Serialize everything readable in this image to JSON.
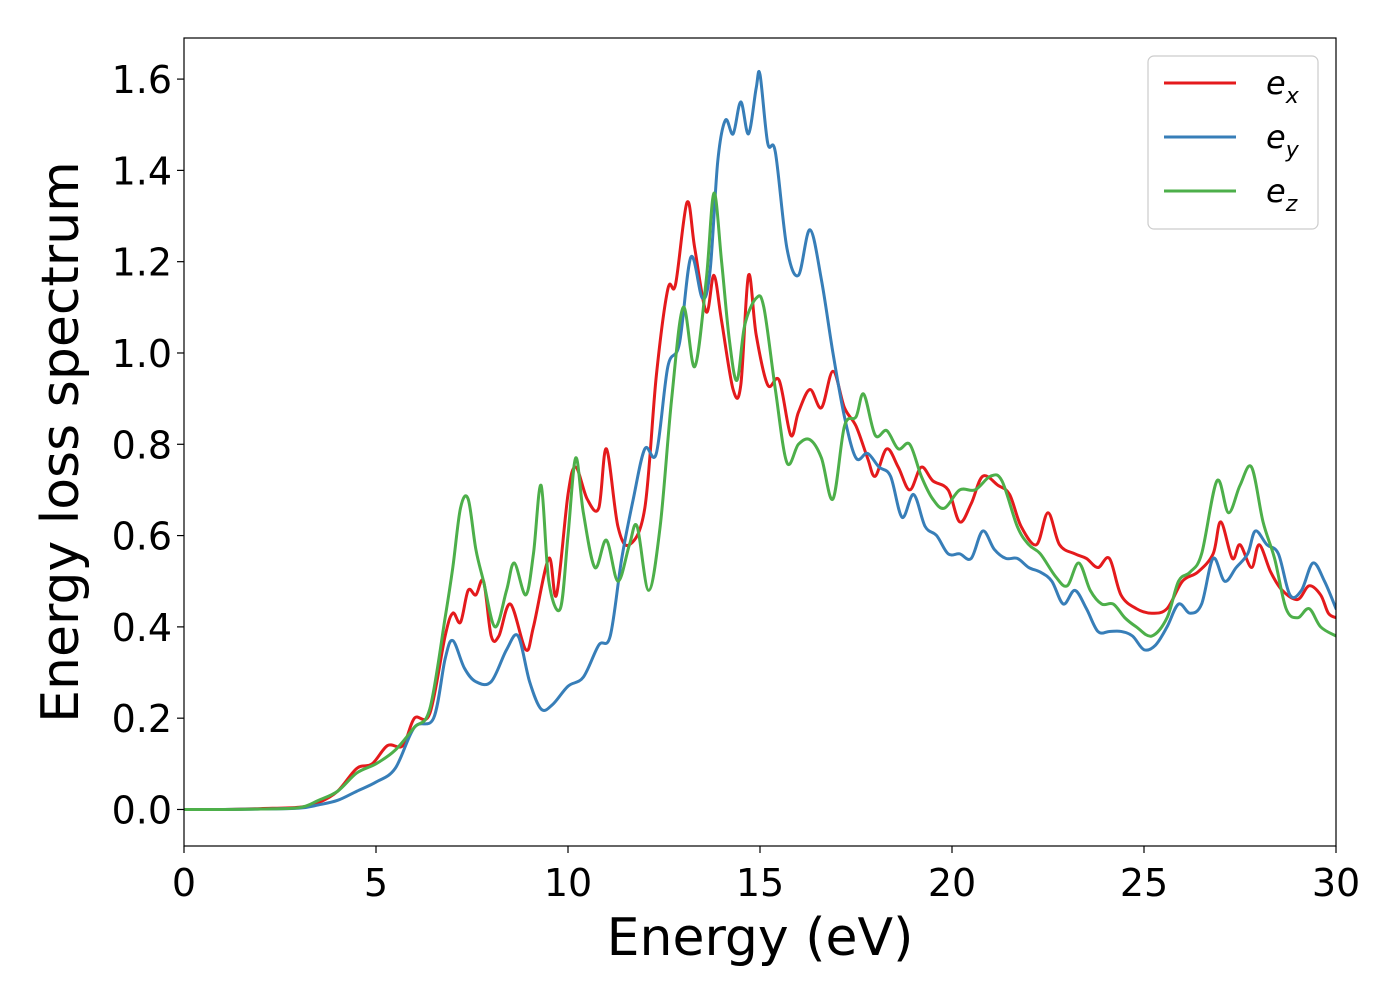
{
  "chart_data": {
    "type": "line",
    "title": "",
    "xlabel": "Energy (eV)",
    "ylabel": "Energy loss spectrum",
    "xlim": [
      0,
      30
    ],
    "ylim": [
      -0.08,
      1.69
    ],
    "xticks": [
      "0",
      "5",
      "10",
      "15",
      "20",
      "25",
      "30"
    ],
    "yticks": [
      "0.0",
      "0.2",
      "0.4",
      "0.6",
      "0.8",
      "1.0",
      "1.2",
      "1.4",
      "1.6"
    ],
    "grid": false,
    "legend_position": "top-right",
    "series": [
      {
        "name": "e_x",
        "legend_base": "e",
        "legend_sub": "x",
        "color": "#e41a1c",
        "points": [
          [
            0,
            0.0
          ],
          [
            1,
            0.0
          ],
          [
            2,
            0.002
          ],
          [
            3,
            0.005
          ],
          [
            3.5,
            0.015
          ],
          [
            4,
            0.04
          ],
          [
            4.5,
            0.09
          ],
          [
            4.9,
            0.1
          ],
          [
            5.3,
            0.14
          ],
          [
            5.7,
            0.14
          ],
          [
            6,
            0.2
          ],
          [
            6.4,
            0.21
          ],
          [
            6.8,
            0.38
          ],
          [
            7.0,
            0.43
          ],
          [
            7.2,
            0.41
          ],
          [
            7.4,
            0.48
          ],
          [
            7.6,
            0.47
          ],
          [
            7.8,
            0.5
          ],
          [
            8.0,
            0.38
          ],
          [
            8.2,
            0.38
          ],
          [
            8.5,
            0.45
          ],
          [
            8.9,
            0.35
          ],
          [
            9.1,
            0.4
          ],
          [
            9.5,
            0.55
          ],
          [
            9.7,
            0.47
          ],
          [
            10.0,
            0.69
          ],
          [
            10.2,
            0.75
          ],
          [
            10.5,
            0.68
          ],
          [
            10.8,
            0.66
          ],
          [
            11.0,
            0.79
          ],
          [
            11.3,
            0.62
          ],
          [
            11.6,
            0.58
          ],
          [
            12.0,
            0.66
          ],
          [
            12.3,
            0.95
          ],
          [
            12.6,
            1.14
          ],
          [
            12.8,
            1.15
          ],
          [
            13.1,
            1.33
          ],
          [
            13.3,
            1.23
          ],
          [
            13.6,
            1.09
          ],
          [
            13.8,
            1.17
          ],
          [
            14.0,
            1.07
          ],
          [
            14.3,
            0.92
          ],
          [
            14.5,
            0.93
          ],
          [
            14.7,
            1.17
          ],
          [
            14.9,
            1.04
          ],
          [
            15.2,
            0.93
          ],
          [
            15.5,
            0.94
          ],
          [
            15.8,
            0.82
          ],
          [
            16.0,
            0.87
          ],
          [
            16.3,
            0.92
          ],
          [
            16.6,
            0.88
          ],
          [
            16.9,
            0.96
          ],
          [
            17.2,
            0.88
          ],
          [
            17.5,
            0.84
          ],
          [
            17.8,
            0.77
          ],
          [
            18.0,
            0.73
          ],
          [
            18.3,
            0.79
          ],
          [
            18.6,
            0.75
          ],
          [
            18.9,
            0.7
          ],
          [
            19.2,
            0.75
          ],
          [
            19.5,
            0.72
          ],
          [
            19.9,
            0.7
          ],
          [
            20.2,
            0.63
          ],
          [
            20.5,
            0.67
          ],
          [
            20.8,
            0.73
          ],
          [
            21.2,
            0.71
          ],
          [
            21.5,
            0.69
          ],
          [
            21.8,
            0.62
          ],
          [
            22.2,
            0.58
          ],
          [
            22.5,
            0.65
          ],
          [
            22.8,
            0.58
          ],
          [
            23.2,
            0.56
          ],
          [
            23.5,
            0.55
          ],
          [
            23.8,
            0.53
          ],
          [
            24.1,
            0.55
          ],
          [
            24.4,
            0.47
          ],
          [
            24.8,
            0.44
          ],
          [
            25.2,
            0.43
          ],
          [
            25.6,
            0.44
          ],
          [
            26.0,
            0.5
          ],
          [
            26.4,
            0.52
          ],
          [
            26.8,
            0.56
          ],
          [
            27.0,
            0.63
          ],
          [
            27.3,
            0.55
          ],
          [
            27.5,
            0.58
          ],
          [
            27.8,
            0.53
          ],
          [
            28.0,
            0.58
          ],
          [
            28.3,
            0.52
          ],
          [
            28.6,
            0.48
          ],
          [
            29.0,
            0.46
          ],
          [
            29.3,
            0.49
          ],
          [
            29.6,
            0.47
          ],
          [
            29.8,
            0.43
          ],
          [
            30.0,
            0.42
          ]
        ]
      },
      {
        "name": "e_y",
        "legend_base": "e",
        "legend_sub": "y",
        "color": "#377eb8",
        "points": [
          [
            0,
            0.0
          ],
          [
            1,
            0.0
          ],
          [
            2,
            0.001
          ],
          [
            3,
            0.003
          ],
          [
            3.5,
            0.01
          ],
          [
            4,
            0.02
          ],
          [
            4.5,
            0.04
          ],
          [
            5,
            0.06
          ],
          [
            5.5,
            0.09
          ],
          [
            6,
            0.18
          ],
          [
            6.5,
            0.2
          ],
          [
            6.8,
            0.33
          ],
          [
            7.0,
            0.37
          ],
          [
            7.3,
            0.31
          ],
          [
            7.6,
            0.28
          ],
          [
            8.0,
            0.28
          ],
          [
            8.4,
            0.35
          ],
          [
            8.7,
            0.38
          ],
          [
            9.0,
            0.28
          ],
          [
            9.3,
            0.22
          ],
          [
            9.6,
            0.23
          ],
          [
            10.0,
            0.27
          ],
          [
            10.4,
            0.29
          ],
          [
            10.8,
            0.36
          ],
          [
            11.1,
            0.38
          ],
          [
            11.4,
            0.55
          ],
          [
            11.7,
            0.68
          ],
          [
            12.0,
            0.79
          ],
          [
            12.3,
            0.78
          ],
          [
            12.6,
            0.97
          ],
          [
            12.9,
            1.02
          ],
          [
            13.2,
            1.21
          ],
          [
            13.5,
            1.12
          ],
          [
            13.7,
            1.18
          ],
          [
            13.9,
            1.42
          ],
          [
            14.1,
            1.51
          ],
          [
            14.3,
            1.48
          ],
          [
            14.5,
            1.55
          ],
          [
            14.7,
            1.48
          ],
          [
            14.9,
            1.58
          ],
          [
            15.0,
            1.61
          ],
          [
            15.2,
            1.46
          ],
          [
            15.4,
            1.44
          ],
          [
            15.7,
            1.23
          ],
          [
            16.0,
            1.17
          ],
          [
            16.3,
            1.27
          ],
          [
            16.6,
            1.16
          ],
          [
            16.9,
            1.0
          ],
          [
            17.2,
            0.86
          ],
          [
            17.5,
            0.77
          ],
          [
            17.8,
            0.78
          ],
          [
            18.1,
            0.75
          ],
          [
            18.4,
            0.73
          ],
          [
            18.7,
            0.64
          ],
          [
            19.0,
            0.69
          ],
          [
            19.3,
            0.62
          ],
          [
            19.6,
            0.6
          ],
          [
            19.9,
            0.56
          ],
          [
            20.2,
            0.56
          ],
          [
            20.5,
            0.55
          ],
          [
            20.8,
            0.61
          ],
          [
            21.1,
            0.57
          ],
          [
            21.4,
            0.55
          ],
          [
            21.7,
            0.55
          ],
          [
            22.0,
            0.53
          ],
          [
            22.3,
            0.52
          ],
          [
            22.6,
            0.5
          ],
          [
            22.9,
            0.45
          ],
          [
            23.2,
            0.48
          ],
          [
            23.5,
            0.44
          ],
          [
            23.8,
            0.39
          ],
          [
            24.1,
            0.39
          ],
          [
            24.4,
            0.39
          ],
          [
            24.7,
            0.38
          ],
          [
            25.0,
            0.35
          ],
          [
            25.3,
            0.36
          ],
          [
            25.6,
            0.4
          ],
          [
            25.9,
            0.45
          ],
          [
            26.2,
            0.43
          ],
          [
            26.5,
            0.45
          ],
          [
            26.8,
            0.55
          ],
          [
            27.1,
            0.5
          ],
          [
            27.4,
            0.53
          ],
          [
            27.7,
            0.56
          ],
          [
            27.9,
            0.61
          ],
          [
            28.2,
            0.58
          ],
          [
            28.5,
            0.56
          ],
          [
            28.8,
            0.47
          ],
          [
            29.1,
            0.48
          ],
          [
            29.4,
            0.54
          ],
          [
            29.7,
            0.5
          ],
          [
            30.0,
            0.44
          ]
        ]
      },
      {
        "name": "e_z",
        "legend_base": "e",
        "legend_sub": "z",
        "color": "#4daf4a",
        "points": [
          [
            0,
            0.0
          ],
          [
            1,
            0.0
          ],
          [
            2,
            0.001
          ],
          [
            3,
            0.004
          ],
          [
            3.5,
            0.02
          ],
          [
            4,
            0.04
          ],
          [
            4.5,
            0.08
          ],
          [
            5,
            0.1
          ],
          [
            5.5,
            0.13
          ],
          [
            6,
            0.18
          ],
          [
            6.4,
            0.22
          ],
          [
            6.8,
            0.42
          ],
          [
            7.0,
            0.53
          ],
          [
            7.2,
            0.66
          ],
          [
            7.4,
            0.68
          ],
          [
            7.6,
            0.57
          ],
          [
            7.8,
            0.5
          ],
          [
            8.1,
            0.4
          ],
          [
            8.4,
            0.48
          ],
          [
            8.6,
            0.54
          ],
          [
            8.9,
            0.47
          ],
          [
            9.1,
            0.56
          ],
          [
            9.3,
            0.71
          ],
          [
            9.5,
            0.5
          ],
          [
            9.8,
            0.44
          ],
          [
            10.0,
            0.6
          ],
          [
            10.2,
            0.77
          ],
          [
            10.4,
            0.65
          ],
          [
            10.7,
            0.53
          ],
          [
            11.0,
            0.59
          ],
          [
            11.3,
            0.5
          ],
          [
            11.6,
            0.58
          ],
          [
            11.8,
            0.62
          ],
          [
            12.1,
            0.48
          ],
          [
            12.4,
            0.62
          ],
          [
            12.7,
            0.9
          ],
          [
            13.0,
            1.1
          ],
          [
            13.3,
            0.97
          ],
          [
            13.6,
            1.16
          ],
          [
            13.8,
            1.35
          ],
          [
            14.0,
            1.2
          ],
          [
            14.2,
            1.03
          ],
          [
            14.4,
            0.94
          ],
          [
            14.6,
            1.06
          ],
          [
            14.9,
            1.12
          ],
          [
            15.1,
            1.1
          ],
          [
            15.4,
            0.92
          ],
          [
            15.7,
            0.76
          ],
          [
            16.0,
            0.8
          ],
          [
            16.3,
            0.81
          ],
          [
            16.6,
            0.77
          ],
          [
            16.9,
            0.68
          ],
          [
            17.2,
            0.84
          ],
          [
            17.5,
            0.86
          ],
          [
            17.7,
            0.91
          ],
          [
            18.0,
            0.82
          ],
          [
            18.3,
            0.83
          ],
          [
            18.6,
            0.79
          ],
          [
            18.9,
            0.8
          ],
          [
            19.2,
            0.73
          ],
          [
            19.5,
            0.68
          ],
          [
            19.8,
            0.66
          ],
          [
            20.2,
            0.7
          ],
          [
            20.6,
            0.7
          ],
          [
            21.0,
            0.73
          ],
          [
            21.3,
            0.72
          ],
          [
            21.7,
            0.62
          ],
          [
            22.0,
            0.58
          ],
          [
            22.3,
            0.56
          ],
          [
            22.7,
            0.51
          ],
          [
            23.0,
            0.49
          ],
          [
            23.3,
            0.54
          ],
          [
            23.6,
            0.48
          ],
          [
            23.9,
            0.45
          ],
          [
            24.2,
            0.45
          ],
          [
            24.5,
            0.42
          ],
          [
            24.8,
            0.4
          ],
          [
            25.2,
            0.38
          ],
          [
            25.6,
            0.42
          ],
          [
            25.9,
            0.5
          ],
          [
            26.2,
            0.52
          ],
          [
            26.5,
            0.56
          ],
          [
            26.9,
            0.72
          ],
          [
            27.2,
            0.65
          ],
          [
            27.5,
            0.71
          ],
          [
            27.8,
            0.75
          ],
          [
            28.1,
            0.63
          ],
          [
            28.4,
            0.55
          ],
          [
            28.7,
            0.44
          ],
          [
            29.0,
            0.42
          ],
          [
            29.3,
            0.44
          ],
          [
            29.6,
            0.4
          ],
          [
            30.0,
            0.38
          ]
        ]
      }
    ]
  }
}
